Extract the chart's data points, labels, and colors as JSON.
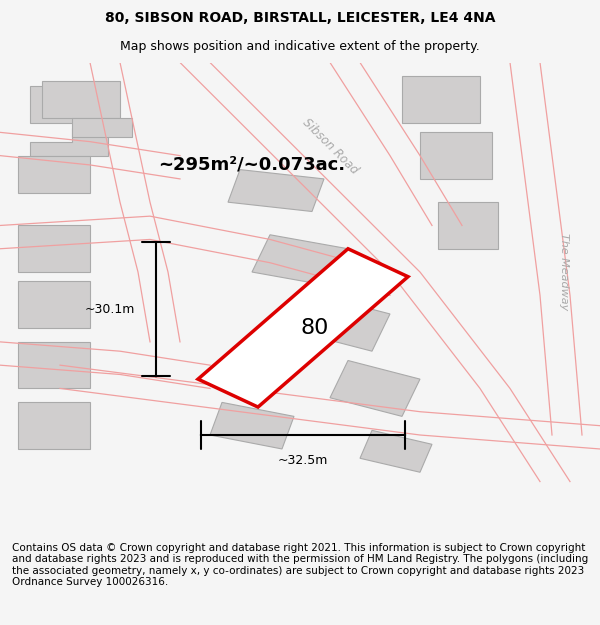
{
  "title_line1": "80, SIBSON ROAD, BIRSTALL, LEICESTER, LE4 4NA",
  "title_line2": "Map shows position and indicative extent of the property.",
  "footer_text": "Contains OS data © Crown copyright and database right 2021. This information is subject to Crown copyright and database rights 2023 and is reproduced with the permission of HM Land Registry. The polygons (including the associated geometry, namely x, y co-ordinates) are subject to Crown copyright and database rights 2023 Ordnance Survey 100026316.",
  "area_label": "~295m²/~0.073ac.",
  "property_number": "80",
  "dim_vertical": "~30.1m",
  "dim_horizontal": "~32.5m",
  "road_label": "Sibson Road",
  "road_label2": "The Meadway",
  "bg_color": "#f5f0f0",
  "map_bg": "#ffffff",
  "building_color": "#d0cece",
  "road_line_color": "#f0a0a0",
  "property_outline_color": "#dd0000",
  "property_fill_color": "#ffffff",
  "dim_line_color": "#000000",
  "title_fontsize": 10,
  "subtitle_fontsize": 9,
  "footer_fontsize": 7.5
}
